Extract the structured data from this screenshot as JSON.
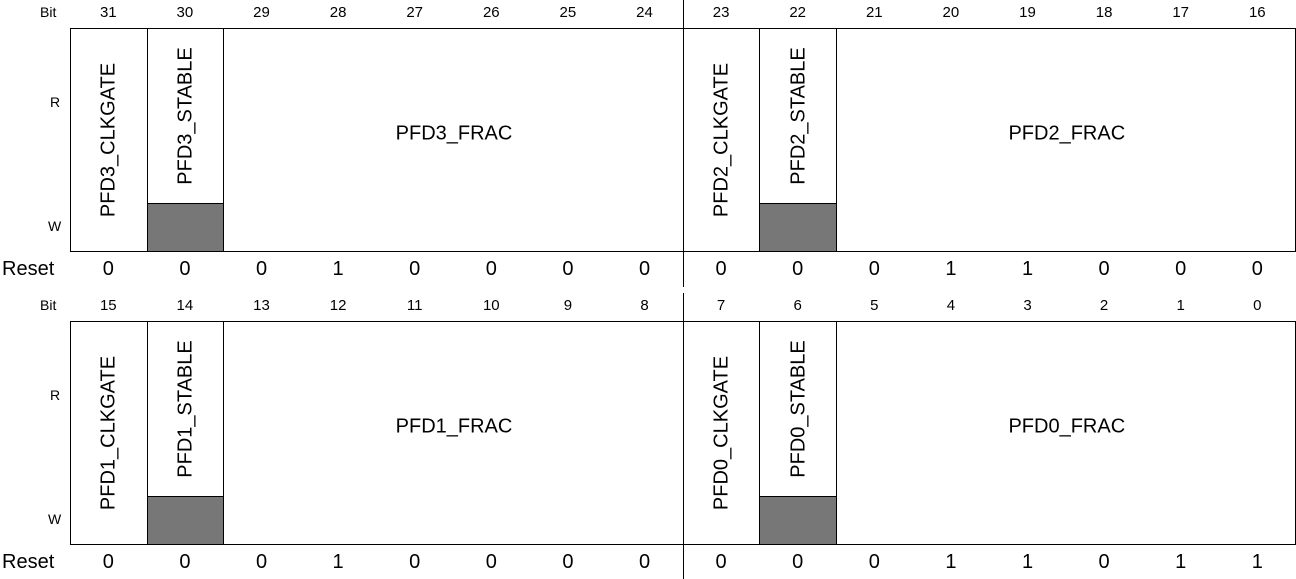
{
  "labels": {
    "bit": "Bit",
    "read": "R",
    "write": "W",
    "reset": "Reset"
  },
  "rows": [
    {
      "bits": [
        "31",
        "30",
        "29",
        "28",
        "27",
        "26",
        "25",
        "24",
        "23",
        "22",
        "21",
        "20",
        "19",
        "18",
        "17",
        "16"
      ],
      "reset": [
        "0",
        "0",
        "0",
        "1",
        "0",
        "0",
        "0",
        "0",
        "0",
        "0",
        "0",
        "1",
        "1",
        "0",
        "0",
        "0"
      ],
      "fields": [
        {
          "name": "PFD3_CLKGATE",
          "span": 1,
          "vertical": true,
          "write_only_shaded": false
        },
        {
          "name": "PFD3_STABLE",
          "span": 1,
          "vertical": true,
          "write_only_shaded": true
        },
        {
          "name": "PFD3_FRAC",
          "span": 6,
          "vertical": false,
          "write_only_shaded": false
        },
        {
          "name": "PFD2_CLKGATE",
          "span": 1,
          "vertical": true,
          "write_only_shaded": false
        },
        {
          "name": "PFD2_STABLE",
          "span": 1,
          "vertical": true,
          "write_only_shaded": true
        },
        {
          "name": "PFD2_FRAC",
          "span": 6,
          "vertical": false,
          "write_only_shaded": false
        }
      ]
    },
    {
      "bits": [
        "15",
        "14",
        "13",
        "12",
        "11",
        "10",
        "9",
        "8",
        "7",
        "6",
        "5",
        "4",
        "3",
        "2",
        "1",
        "0"
      ],
      "reset": [
        "0",
        "0",
        "0",
        "1",
        "0",
        "0",
        "0",
        "0",
        "0",
        "0",
        "0",
        "1",
        "1",
        "0",
        "1",
        "1"
      ],
      "fields": [
        {
          "name": "PFD1_CLKGATE",
          "span": 1,
          "vertical": true,
          "write_only_shaded": false
        },
        {
          "name": "PFD1_STABLE",
          "span": 1,
          "vertical": true,
          "write_only_shaded": true
        },
        {
          "name": "PFD1_FRAC",
          "span": 6,
          "vertical": false,
          "write_only_shaded": false
        },
        {
          "name": "PFD0_CLKGATE",
          "span": 1,
          "vertical": true,
          "write_only_shaded": false
        },
        {
          "name": "PFD0_STABLE",
          "span": 1,
          "vertical": true,
          "write_only_shaded": true
        },
        {
          "name": "PFD0_FRAC",
          "span": 6,
          "vertical": false,
          "write_only_shaded": false
        }
      ]
    }
  ]
}
